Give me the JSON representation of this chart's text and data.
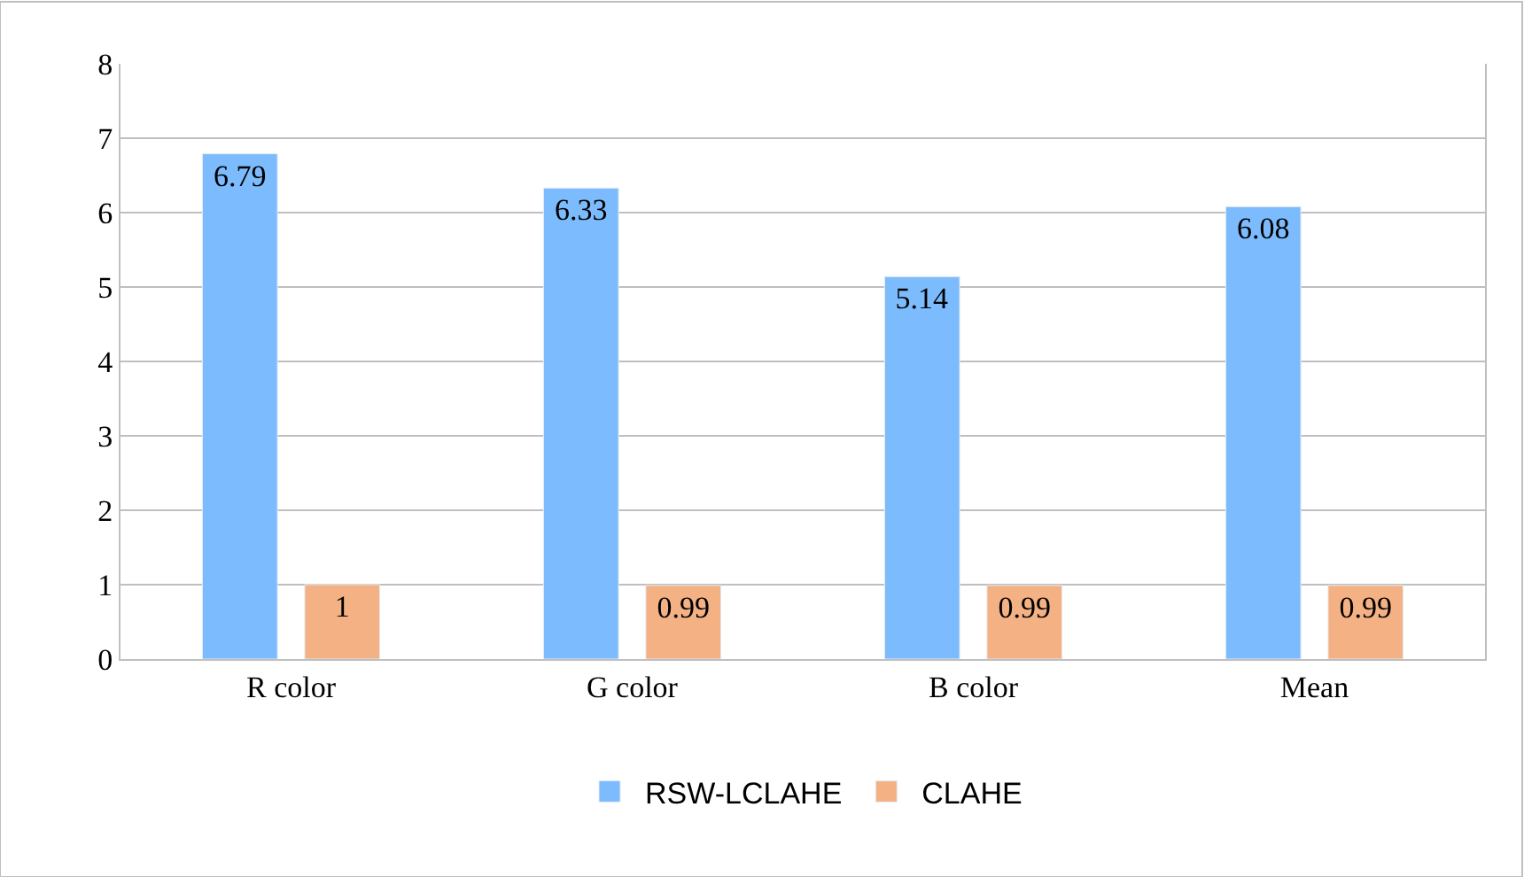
{
  "chart_data": {
    "type": "bar",
    "categories": [
      "R color",
      "G color",
      "B color",
      "Mean"
    ],
    "series": [
      {
        "name": "RSW-LCLAHE",
        "color": "#7cbbfd",
        "values": [
          6.79,
          6.33,
          5.14,
          6.08
        ]
      },
      {
        "name": "CLAHE",
        "color": "#f4b183",
        "values": [
          1,
          0.99,
          0.99,
          0.99
        ]
      }
    ],
    "ylim": [
      0,
      8
    ],
    "yticks": [
      0,
      1,
      2,
      3,
      4,
      5,
      6,
      7,
      8
    ],
    "grid": "y",
    "legend": "bottom",
    "data_labels": true
  }
}
